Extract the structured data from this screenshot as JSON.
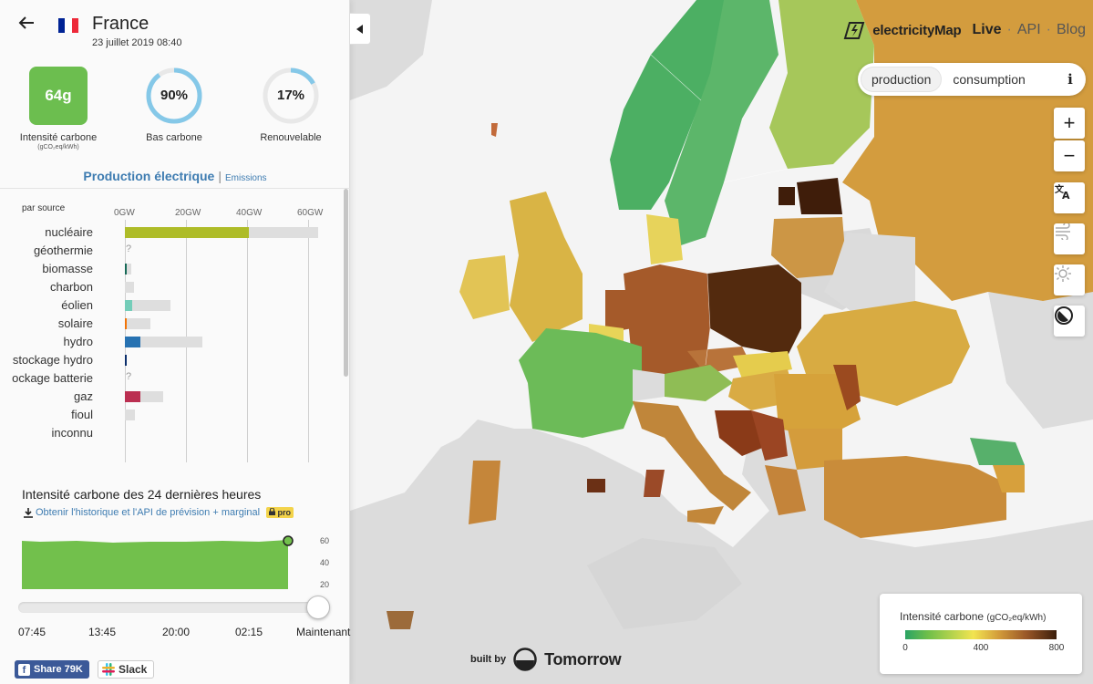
{
  "zone": {
    "name": "France",
    "date": "23 juillet 2019 08:40",
    "flag_colors": [
      "#002395",
      "#ffffff",
      "#ed2939"
    ]
  },
  "kpis": {
    "carbon_value": "64g",
    "carbon_label": "Intensité carbone",
    "carbon_unit": "(gCO₂eq/kWh)",
    "low_carbon_pct": "90%",
    "low_carbon_fraction": 0.9,
    "low_carbon_label": "Bas carbone",
    "renewable_pct": "17%",
    "renewable_fraction": 0.17,
    "renewable_label": "Renouvelable",
    "circle_color": "#85c8e8"
  },
  "tabs": {
    "active": "Production électrique",
    "separator": "|",
    "other": "Emissions"
  },
  "production": {
    "par_source": "par source",
    "axis_ticks": [
      "0GW",
      "20GW",
      "40GW",
      "60GW"
    ],
    "axis_max_gw": 60,
    "sources": [
      {
        "label": "nucléaire",
        "value": 40.5,
        "capacity": 63.2,
        "color": "#aebc28"
      },
      {
        "label": "géothermie",
        "value": null,
        "capacity": null,
        "color": "#999999",
        "unknown": "?"
      },
      {
        "label": "biomasse",
        "value": 0.4,
        "capacity": 2.1,
        "color": "#166a57"
      },
      {
        "label": "charbon",
        "value": 0.0,
        "capacity": 3.0,
        "color": "#ac8c35"
      },
      {
        "label": "éolien",
        "value": 2.5,
        "capacity": 15.0,
        "color": "#74cdb9"
      },
      {
        "label": "solaire",
        "value": 0.5,
        "capacity": 8.5,
        "color": "#f27406"
      },
      {
        "label": "hydro",
        "value": 5.0,
        "capacity": 25.5,
        "color": "#2772b2"
      },
      {
        "label": "stockage hydro",
        "value": 0.5,
        "capacity": 0.5,
        "color": "#0b2e6c"
      },
      {
        "label": "ockage batterie",
        "value": null,
        "capacity": null,
        "color": "#999999",
        "unknown": "?"
      },
      {
        "label": "gaz",
        "value": 5.0,
        "capacity": 12.4,
        "color": "#bb2f51"
      },
      {
        "label": "fioul",
        "value": 0.0,
        "capacity": 3.3,
        "color": "#867d66"
      },
      {
        "label": "inconnu",
        "value": null,
        "capacity": null,
        "color": "#acacac"
      }
    ]
  },
  "history": {
    "title": "Intensité carbone des 24 dernières heures",
    "link": "Obtenir l'historique et l'API de prévision + marginal",
    "badge": "pro",
    "ticks": [
      "60",
      "40",
      "20"
    ],
    "fill_color": "#72c04c"
  },
  "timeline": {
    "labels": [
      "07:45",
      "13:45",
      "20:00",
      "02:15",
      "Maintenant"
    ],
    "position_fraction": 1.0
  },
  "social": {
    "share": "Share 79K",
    "slack": "Slack"
  },
  "brand": {
    "name": "electricityMap",
    "live": "Live",
    "api": "API",
    "blog": "Blog",
    "sep": "·"
  },
  "mode_toggle": {
    "production": "production",
    "consumption": "consumption",
    "info": "i"
  },
  "map_controls": {
    "zoom_in": "+",
    "zoom_out": "−"
  },
  "legend": {
    "title": "Intensité carbone",
    "unit": "(gCO₂eq/kWh)",
    "ticks": [
      "0",
      "400",
      "800"
    ]
  },
  "built_by": {
    "prefix": "built by",
    "company": "Tomorrow"
  }
}
